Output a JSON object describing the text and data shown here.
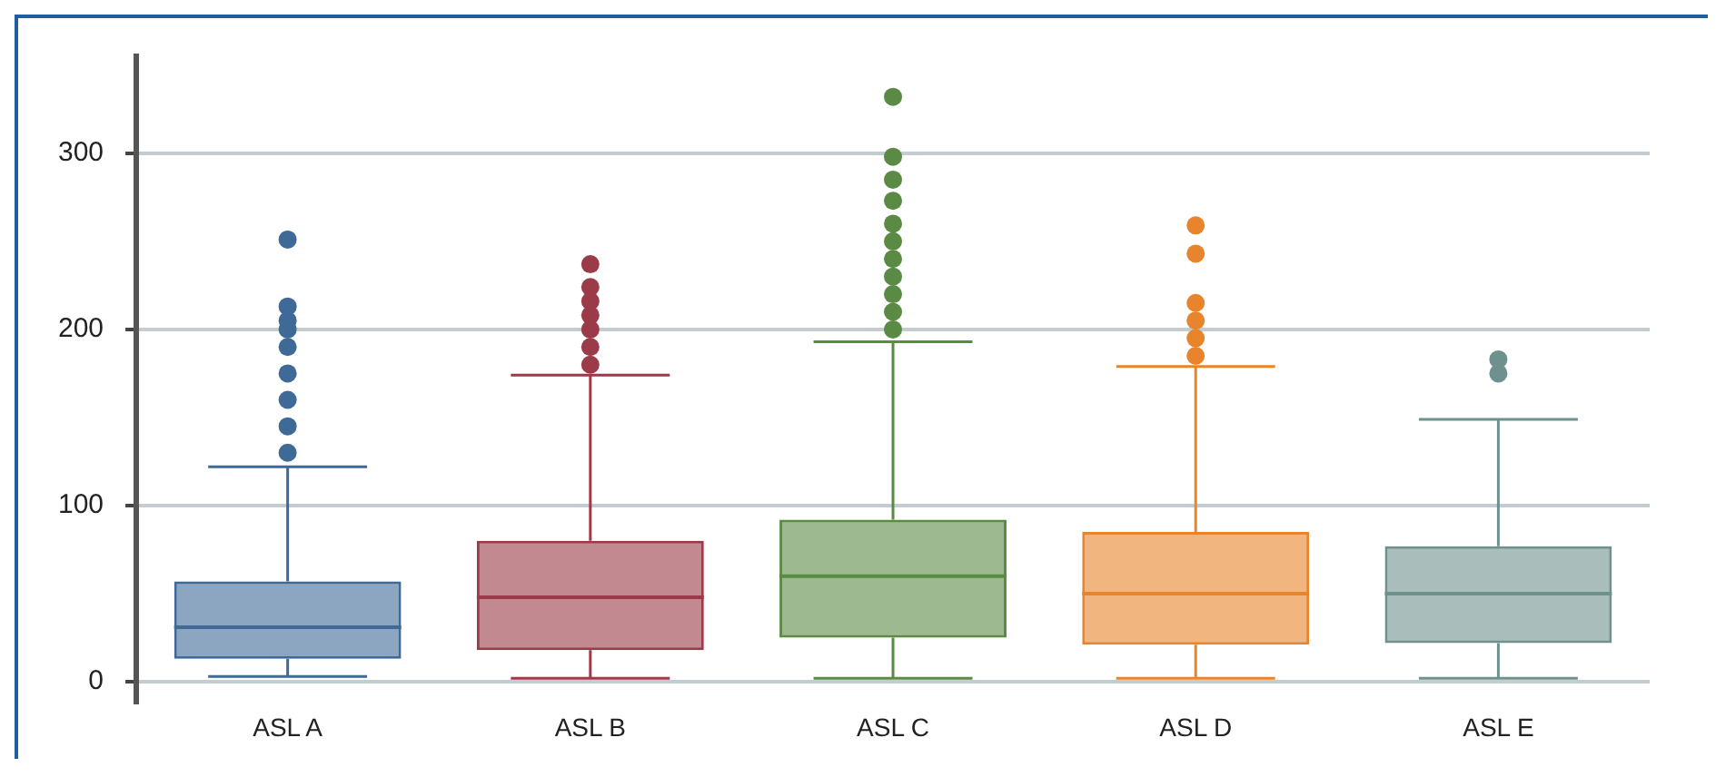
{
  "chart_data": {
    "type": "box",
    "categories": [
      "ASL A",
      "ASL B",
      "ASL C",
      "ASL D",
      "ASL E"
    ],
    "colors": [
      "#3f6a98",
      "#9b3a48",
      "#5a8a44",
      "#e8842c",
      "#6f918e"
    ],
    "boxes": [
      {
        "low": 3,
        "q1": 13,
        "median": 31,
        "q3": 57,
        "high": 122,
        "outliers": [
          130,
          145,
          160,
          175,
          190,
          200,
          205,
          213,
          251
        ]
      },
      {
        "low": 2,
        "q1": 18,
        "median": 48,
        "q3": 80,
        "high": 174,
        "outliers": [
          180,
          190,
          200,
          208,
          216,
          224,
          237
        ]
      },
      {
        "low": 2,
        "q1": 25,
        "median": 60,
        "q3": 92,
        "high": 193,
        "outliers": [
          200,
          210,
          220,
          230,
          240,
          250,
          260,
          273,
          285,
          298,
          332
        ]
      },
      {
        "low": 2,
        "q1": 21,
        "median": 50,
        "q3": 85,
        "high": 179,
        "outliers": [
          185,
          195,
          205,
          215,
          243,
          259
        ]
      },
      {
        "low": 2,
        "q1": 22,
        "median": 50,
        "q3": 77,
        "high": 149,
        "outliers": [
          175,
          183
        ]
      }
    ],
    "ylim": [
      -12,
      355
    ],
    "yticks": [
      0,
      100,
      200,
      300
    ],
    "grid": "y",
    "legend": false
  }
}
